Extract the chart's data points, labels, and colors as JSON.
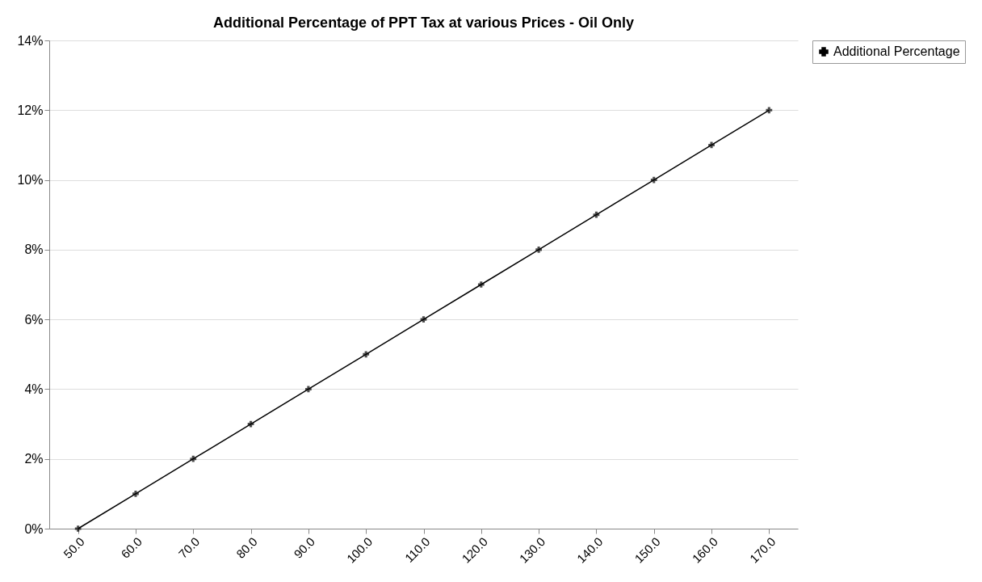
{
  "chart_data": {
    "type": "line",
    "title": "Additional Percentage of PPT Tax at various Prices - Oil Only",
    "categories": [
      "50.0",
      "60.0",
      "70.0",
      "80.0",
      "90.0",
      "100.0",
      "110.0",
      "120.0",
      "130.0",
      "140.0",
      "150.0",
      "160.0",
      "170.0"
    ],
    "series": [
      {
        "name": "Additional Percentage",
        "color": "#000000",
        "values": [
          0,
          1,
          2,
          3,
          4,
          5,
          6,
          7,
          8,
          9,
          10,
          11,
          12
        ]
      }
    ],
    "ylim": [
      0,
      14
    ],
    "yticks": [
      {
        "value": 0,
        "label": "0%"
      },
      {
        "value": 2,
        "label": "2%"
      },
      {
        "value": 4,
        "label": "4%"
      },
      {
        "value": 6,
        "label": "6%"
      },
      {
        "value": 8,
        "label": "8%"
      },
      {
        "value": 10,
        "label": "10%"
      },
      {
        "value": 12,
        "label": "12%"
      },
      {
        "value": 14,
        "label": "14%"
      }
    ],
    "grid": "y",
    "legend": "right",
    "marker": "cross",
    "line_style": "solid"
  }
}
